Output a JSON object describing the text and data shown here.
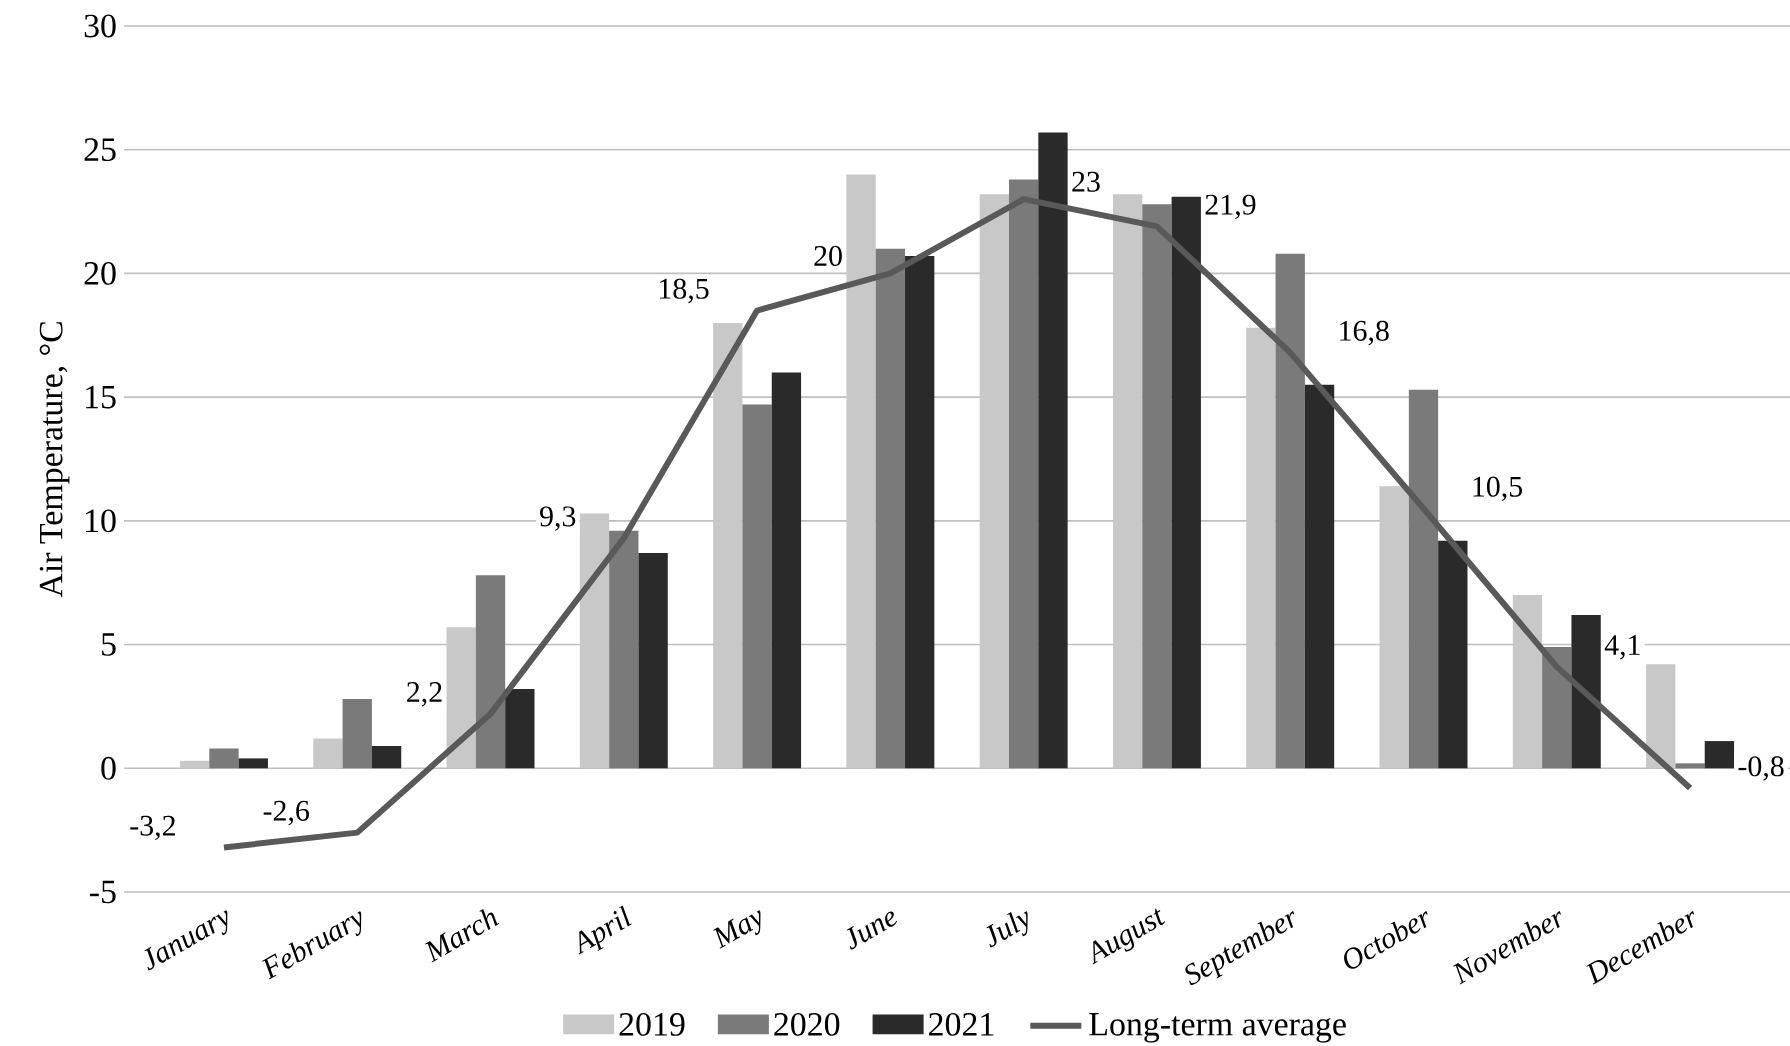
{
  "chart_data": {
    "type": "bar",
    "ylabel": "Air Temperature, °C",
    "categories": [
      "January",
      "February",
      "March",
      "April",
      "May",
      "June",
      "July",
      "August",
      "September",
      "October",
      "November",
      "December"
    ],
    "series": [
      {
        "name": "2019",
        "color": "#c8c8c8",
        "values": [
          0.3,
          1.2,
          5.7,
          10.3,
          18.0,
          24.0,
          23.2,
          23.2,
          17.8,
          11.4,
          7.0,
          4.2
        ]
      },
      {
        "name": "2020",
        "color": "#7a7a7a",
        "values": [
          0.8,
          2.8,
          7.8,
          9.6,
          14.7,
          21.0,
          23.8,
          22.8,
          20.8,
          15.3,
          4.9,
          0.2
        ]
      },
      {
        "name": "2021",
        "color": "#2a2a2a",
        "values": [
          0.4,
          0.9,
          3.2,
          8.7,
          16.0,
          20.7,
          25.7,
          23.1,
          15.5,
          9.2,
          6.2,
          1.1
        ]
      },
      {
        "name": "Long-term average",
        "type": "line",
        "color": "#595959",
        "values": [
          -3.2,
          -2.6,
          2.2,
          9.3,
          18.5,
          20,
          23,
          21.9,
          16.8,
          10.5,
          4.1,
          -0.8
        ],
        "value_labels": [
          "-3,2",
          "-2,6",
          "2,2",
          "9,3",
          "18,5",
          "20",
          "23",
          "21,9",
          "16,8",
          "10,5",
          "4,1",
          "-0,8"
        ]
      }
    ],
    "ylim": [
      -5,
      30
    ],
    "yticks": [
      -5,
      0,
      5,
      10,
      15,
      20,
      25,
      30
    ],
    "grid": "y",
    "legend": "bottom"
  }
}
